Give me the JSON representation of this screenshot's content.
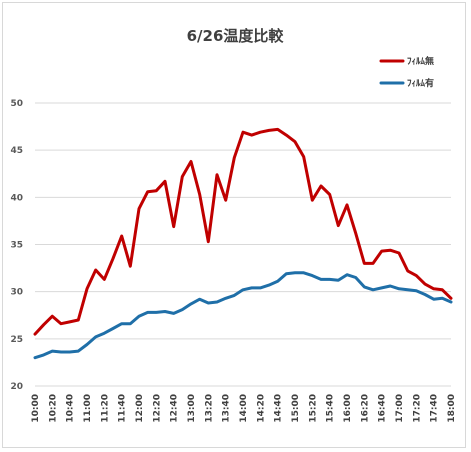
{
  "chart_data": {
    "type": "line",
    "title": "6/26温度比較",
    "xlabel": "",
    "ylabel": "",
    "ylim": [
      20,
      50
    ],
    "yticks": [
      20,
      25,
      30,
      35,
      40,
      45,
      50
    ],
    "grid": true,
    "legend_position": "top-right",
    "x": [
      "10:00",
      "10:10",
      "10:20",
      "10:30",
      "10:40",
      "10:50",
      "11:00",
      "11:10",
      "11:20",
      "11:30",
      "11:40",
      "11:50",
      "12:00",
      "12:10",
      "12:20",
      "12:30",
      "12:40",
      "12:50",
      "13:00",
      "13:10",
      "13:20",
      "13:30",
      "13:40",
      "13:50",
      "14:00",
      "14:10",
      "14:20",
      "14:30",
      "14:40",
      "14:50",
      "15:00",
      "15:10",
      "15:20",
      "15:30",
      "15:40",
      "15:50",
      "16:00",
      "16:10",
      "16:20",
      "16:30",
      "16:40",
      "16:50",
      "17:00",
      "17:10",
      "17:20",
      "17:30",
      "17:40",
      "17:50",
      "18:00"
    ],
    "x_tick_labels": [
      "10:00",
      "10:20",
      "10:40",
      "11:00",
      "11:20",
      "11:40",
      "12:00",
      "12:20",
      "12:40",
      "13:00",
      "13:20",
      "13:40",
      "14:00",
      "14:20",
      "14:40",
      "15:00",
      "15:20",
      "15:40",
      "16:00",
      "16:20",
      "16:40",
      "17:00",
      "17:20",
      "17:40",
      "18:00"
    ],
    "series": [
      {
        "name": "ﾌｨﾙﾑ無",
        "color": "#c00000",
        "values": [
          25.5,
          26.5,
          27.4,
          26.6,
          26.8,
          27.0,
          30.3,
          32.3,
          31.3,
          33.5,
          35.9,
          32.7,
          38.8,
          40.6,
          40.7,
          41.7,
          36.9,
          42.2,
          43.8,
          40.3,
          35.3,
          42.4,
          39.7,
          44.2,
          46.9,
          46.6,
          46.9,
          47.1,
          47.2,
          46.6,
          45.9,
          44.3,
          39.7,
          41.2,
          40.3,
          37.0,
          39.2,
          36.2,
          33.0,
          33.0,
          34.3,
          34.4,
          34.1,
          32.2,
          31.7,
          30.8,
          30.3,
          30.2,
          29.3
        ]
      },
      {
        "name": "ﾌｨﾙﾑ有",
        "color": "#1f6fa8",
        "values": [
          23.0,
          23.3,
          23.7,
          23.6,
          23.6,
          23.7,
          24.4,
          25.2,
          25.6,
          26.1,
          26.6,
          26.6,
          27.4,
          27.8,
          27.8,
          27.9,
          27.7,
          28.1,
          28.7,
          29.2,
          28.8,
          28.9,
          29.3,
          29.6,
          30.2,
          30.4,
          30.4,
          30.7,
          31.1,
          31.9,
          32.0,
          32.0,
          31.7,
          31.3,
          31.3,
          31.2,
          31.8,
          31.5,
          30.5,
          30.2,
          30.4,
          30.6,
          30.3,
          30.2,
          30.1,
          29.7,
          29.2,
          29.3,
          28.9
        ]
      }
    ]
  }
}
